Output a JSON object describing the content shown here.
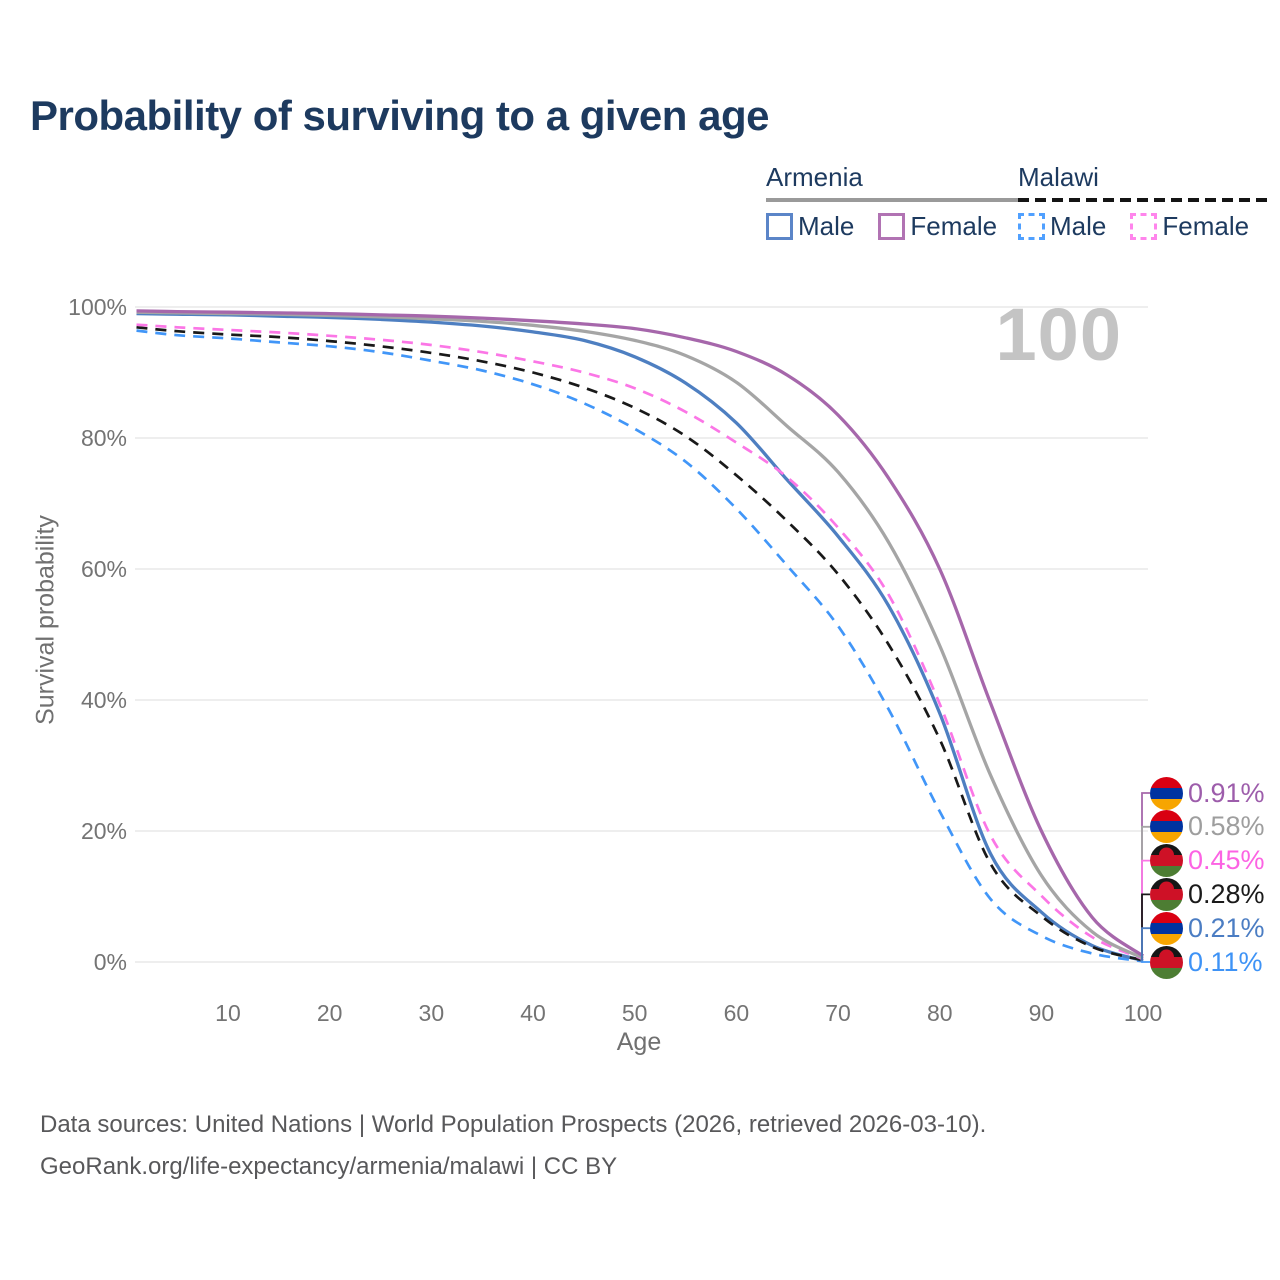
{
  "title": "Probability of surviving to a given age",
  "watermark": {
    "text": "100"
  },
  "legend": {
    "groups": [
      {
        "label": "Armenia",
        "underline_style": "solid",
        "underline_color": "#9a9a9a",
        "items": [
          {
            "label": "Male",
            "swatch_color": "#5b85c8",
            "swatch_style": "solid"
          },
          {
            "label": "Female",
            "swatch_color": "#b173b3",
            "swatch_style": "solid"
          }
        ]
      },
      {
        "label": "Malawi",
        "underline_style": "dashed",
        "underline_color": "#141414",
        "items": [
          {
            "label": "Male",
            "swatch_color": "#50a0ff",
            "swatch_style": "dashed"
          },
          {
            "label": "Female",
            "swatch_color": "#ff85ec",
            "swatch_style": "dashed"
          }
        ]
      }
    ]
  },
  "chart_data": {
    "type": "line",
    "title": "Probability of surviving to a given age",
    "xlabel": "Age",
    "ylabel": "Survival probability",
    "xlim": [
      0,
      100
    ],
    "ylim": [
      0,
      100
    ],
    "grid": "horizontal",
    "x_ticks": [
      10,
      20,
      30,
      40,
      50,
      60,
      70,
      80,
      90,
      100
    ],
    "y_ticks": [
      {
        "value": 0,
        "label": "0%"
      },
      {
        "value": 20,
        "label": "20%"
      },
      {
        "value": 40,
        "label": "40%"
      },
      {
        "value": 60,
        "label": "60%"
      },
      {
        "value": 80,
        "label": "80%"
      },
      {
        "value": 100,
        "label": "100%"
      }
    ],
    "x": [
      1,
      5,
      10,
      15,
      20,
      25,
      30,
      35,
      40,
      45,
      50,
      55,
      60,
      65,
      70,
      75,
      80,
      85,
      90,
      95,
      100
    ],
    "series": [
      {
        "id": "armenia-female",
        "name": "Armenia Female",
        "country": "Armenia",
        "sex": "Female",
        "line": "solid",
        "color": "#a667ab",
        "label_color": "#9d5dab",
        "flag": "armenia",
        "end_label": "0.91%",
        "values": [
          99.4,
          99.3,
          99.2,
          99.1,
          99.0,
          98.8,
          98.6,
          98.3,
          97.9,
          97.4,
          96.7,
          95.3,
          93.2,
          89.6,
          83.5,
          73.8,
          60.0,
          39.5,
          20.0,
          6.8,
          0.91
        ]
      },
      {
        "id": "armenia-all",
        "name": "Armenia Both sexes",
        "country": "Armenia",
        "sex": "Both",
        "line": "solid",
        "color": "#a5a5a5",
        "label_color": "#9e9e9e",
        "flag": "armenia",
        "end_label": "0.58%",
        "values": [
          99.2,
          99.1,
          99.0,
          98.9,
          98.7,
          98.5,
          98.2,
          97.8,
          97.2,
          96.3,
          94.9,
          92.6,
          88.5,
          81.8,
          74.8,
          64.0,
          48.3,
          28.5,
          13.2,
          4.6,
          0.58
        ]
      },
      {
        "id": "malawi-female",
        "name": "Malawi Female",
        "country": "Malawi",
        "sex": "Female",
        "line": "dashed",
        "color": "#fb76e6",
        "label_color": "#fc63e3",
        "flag": "malawi",
        "end_label": "0.45%",
        "values": [
          97.3,
          96.9,
          96.5,
          96.1,
          95.6,
          95.0,
          94.2,
          93.1,
          91.7,
          90.0,
          87.6,
          84.0,
          79.3,
          74.0,
          66.3,
          56.0,
          39.4,
          19.3,
          10.1,
          3.8,
          0.45
        ]
      },
      {
        "id": "malawi-all",
        "name": "Malawi Both sexes",
        "country": "Malawi",
        "sex": "Both",
        "line": "dashed",
        "color": "#191919",
        "label_color": "#1a1a1a",
        "flag": "malawi",
        "end_label": "0.28%",
        "values": [
          96.9,
          96.3,
          95.8,
          95.4,
          94.8,
          94.0,
          93.0,
          91.7,
          90.0,
          87.7,
          84.6,
          80.3,
          74.3,
          67.3,
          59.2,
          48.4,
          34.0,
          15.0,
          7.0,
          2.3,
          0.28
        ]
      },
      {
        "id": "armenia-male",
        "name": "Armenia Male",
        "country": "Armenia",
        "sex": "Male",
        "line": "solid",
        "color": "#4e7fc1",
        "label_color": "#4b7dc3",
        "flag": "armenia",
        "end_label": "0.21%",
        "values": [
          99.0,
          98.9,
          98.8,
          98.6,
          98.4,
          98.1,
          97.7,
          97.1,
          96.2,
          94.9,
          92.4,
          88.4,
          82.3,
          73.6,
          65.0,
          54.3,
          38.0,
          16.5,
          7.6,
          2.5,
          0.21
        ]
      },
      {
        "id": "malawi-male",
        "name": "Malawi Male",
        "country": "Malawi",
        "sex": "Male",
        "line": "dashed",
        "color": "#4196f8",
        "label_color": "#3e93f6",
        "flag": "malawi",
        "end_label": "0.11%",
        "values": [
          96.4,
          95.7,
          95.2,
          94.6,
          94.0,
          93.1,
          91.8,
          90.3,
          88.2,
          85.3,
          81.4,
          76.4,
          69.2,
          60.5,
          51.3,
          38.5,
          23.0,
          9.6,
          4.0,
          1.3,
          0.11
        ]
      }
    ],
    "flag_colors": {
      "armenia": [
        "#d90012",
        "#0033a0",
        "#f7a500"
      ],
      "malawi": [
        "#161616",
        "#ce1126",
        "#4d7d33"
      ]
    }
  },
  "footer": {
    "line1": "Data sources: United Nations | World Population Prospects (2026, retrieved 2026-03-10).",
    "line2": "GeoRank.org/life-expectancy/armenia/malawi | CC BY"
  }
}
